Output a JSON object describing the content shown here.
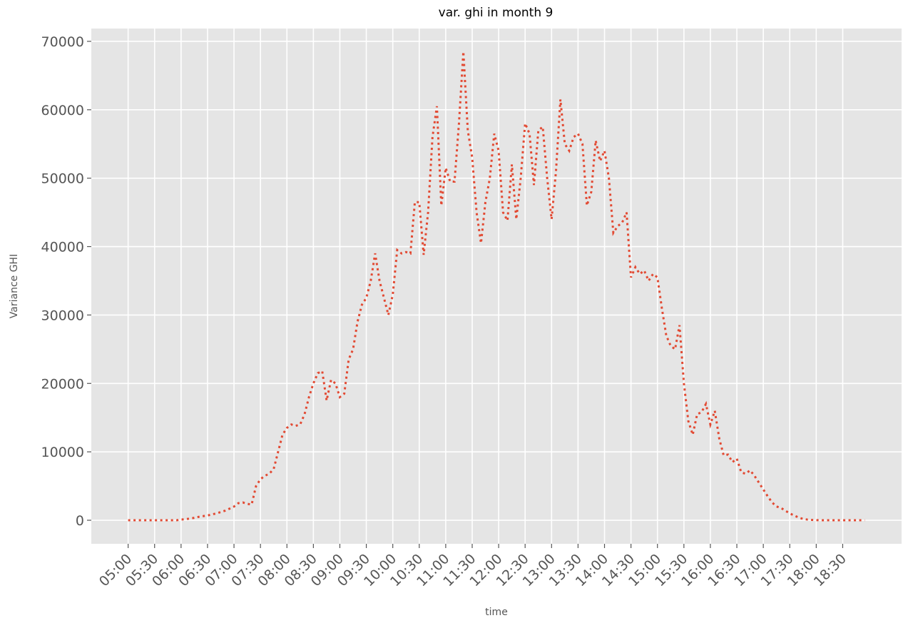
{
  "chart_data": {
    "type": "line",
    "title": "var. ghi in month 9",
    "x_label": "time",
    "y_label": "Variance GHI",
    "categories": [
      "05:00",
      null,
      null,
      null,
      null,
      null,
      "05:30",
      null,
      null,
      null,
      null,
      null,
      "06:00",
      null,
      null,
      null,
      null,
      null,
      "06:30",
      null,
      null,
      null,
      null,
      null,
      "07:00",
      null,
      null,
      null,
      null,
      null,
      "07:30",
      null,
      null,
      null,
      null,
      null,
      "08:00",
      null,
      null,
      null,
      null,
      null,
      "08:30",
      null,
      null,
      null,
      null,
      null,
      "09:00",
      null,
      null,
      null,
      null,
      null,
      "09:30",
      null,
      null,
      null,
      null,
      null,
      "10:00",
      null,
      null,
      null,
      null,
      null,
      "10:30",
      null,
      null,
      null,
      null,
      null,
      "11:00",
      null,
      null,
      null,
      null,
      null,
      "11:30",
      null,
      null,
      null,
      null,
      null,
      "12:00",
      null,
      null,
      null,
      null,
      null,
      "12:30",
      null,
      null,
      null,
      null,
      null,
      "13:00",
      null,
      null,
      null,
      null,
      null,
      "13:30",
      null,
      null,
      null,
      null,
      null,
      "14:00",
      null,
      null,
      null,
      null,
      null,
      "14:30",
      null,
      null,
      null,
      null,
      null,
      "15:00",
      null,
      null,
      null,
      null,
      null,
      "15:30",
      null,
      null,
      null,
      null,
      null,
      "16:00",
      null,
      null,
      null,
      null,
      null,
      "16:30",
      null,
      null,
      null,
      null,
      null,
      "17:00",
      null,
      null,
      null,
      null,
      null,
      "17:30",
      null,
      null,
      null,
      null,
      null,
      "18:00",
      null,
      null,
      null,
      null,
      null,
      "18:30",
      null,
      null,
      null,
      null,
      null
    ],
    "values": [
      0,
      0,
      0,
      0,
      0,
      0,
      0,
      0,
      0,
      0,
      0,
      0,
      100,
      150,
      250,
      350,
      500,
      600,
      700,
      850,
      1000,
      1200,
      1400,
      1700,
      2000,
      2500,
      2600,
      2400,
      2300,
      5000,
      6000,
      6500,
      6800,
      7500,
      10000,
      12500,
      13500,
      14000,
      13800,
      14000,
      15500,
      18000,
      20000,
      21500,
      21800,
      17500,
      20500,
      20000,
      18000,
      18500,
      23500,
      25000,
      29000,
      31500,
      32500,
      35000,
      39000,
      35000,
      32500,
      30000,
      33000,
      39500,
      39000,
      39200,
      39000,
      46500,
      46500,
      38800,
      45000,
      56000,
      60500,
      46000,
      51500,
      49500,
      49500,
      58000,
      68500,
      57000,
      53000,
      45000,
      40500,
      46500,
      50000,
      56500,
      54000,
      45000,
      43800,
      52000,
      44000,
      50000,
      58000,
      56500,
      49000,
      57000,
      57500,
      50000,
      44000,
      51000,
      61500,
      55000,
      54000,
      56000,
      56500,
      55000,
      46000,
      48000,
      55500,
      52500,
      54000,
      50000,
      42000,
      43000,
      43500,
      45000,
      35500,
      37000,
      36000,
      36500,
      35000,
      36000,
      35500,
      31000,
      27000,
      25500,
      25000,
      28500,
      20000,
      14500,
      12500,
      15500,
      15800,
      17000,
      14000,
      16000,
      12000,
      9500,
      9600,
      8500,
      9000,
      7000,
      6800,
      7300,
      6500,
      5500,
      4500,
      3500,
      2600,
      2000,
      1800,
      1400,
      1000,
      700,
      400,
      200,
      100,
      50,
      20,
      0,
      0,
      0,
      0,
      0,
      0,
      0,
      0,
      0,
      0,
      0
    ],
    "color": "#E24A33",
    "line_style": "dotted",
    "ylim": [
      -3440,
      71870
    ],
    "yticks": [
      0,
      10000,
      20000,
      30000,
      40000,
      50000,
      60000,
      70000
    ],
    "grid": true
  }
}
